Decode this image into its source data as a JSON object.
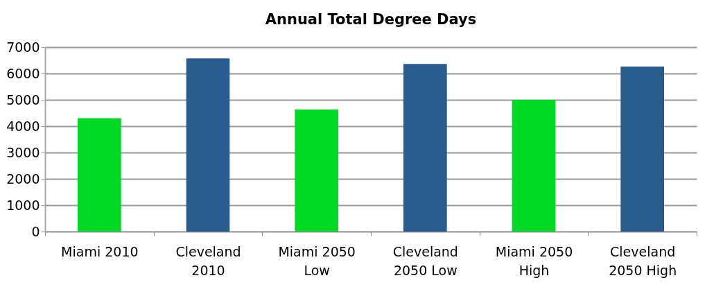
{
  "chart_data": {
    "type": "bar",
    "title": "Annual Total Degree Days",
    "categories": [
      "Miami 2010",
      "Cleveland 2010",
      "Miami 2050 Low",
      "Cleveland 2050 Low",
      "Miami 2050 High",
      "Cleveland 2050 High"
    ],
    "values": [
      4300,
      6570,
      4630,
      6360,
      5000,
      6260
    ],
    "colors": [
      "#00d924",
      "#285c8f",
      "#00d924",
      "#285c8f",
      "#00d924",
      "#285c8f"
    ],
    "ylim": [
      0,
      7000
    ],
    "yticks": [
      0,
      1000,
      2000,
      3000,
      4000,
      5000,
      6000,
      7000
    ],
    "grid": "y"
  }
}
